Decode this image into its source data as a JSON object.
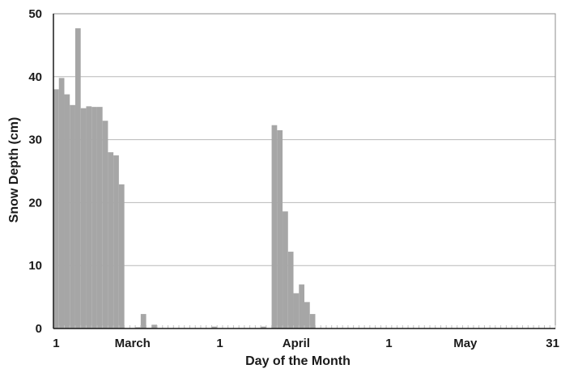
{
  "chart_data": {
    "type": "bar",
    "title": "",
    "xlabel": "Day of the Month",
    "ylabel": "Snow Depth (cm)",
    "ylim": [
      0,
      50
    ],
    "yticks": [
      0,
      10,
      20,
      30,
      40,
      50
    ],
    "x_tick_labels": [
      {
        "day_index": 0,
        "label": "1"
      },
      {
        "day_index": 14,
        "label": "March"
      },
      {
        "day_index": 30,
        "label": "1"
      },
      {
        "day_index": 44,
        "label": "April"
      },
      {
        "day_index": 61,
        "label": "1"
      },
      {
        "day_index": 75,
        "label": "May"
      },
      {
        "day_index": 91,
        "label": "31"
      }
    ],
    "grid": "horizontal",
    "bar_color": "#a6a6a6",
    "gridline_color": "#b8b8b8",
    "values": [
      38.0,
      39.8,
      37.2,
      35.5,
      47.7,
      35.0,
      35.3,
      35.2,
      35.2,
      33.0,
      28.0,
      27.5,
      22.9,
      0,
      0,
      0.2,
      2.3,
      0.1,
      0.6,
      0,
      0,
      0,
      0,
      0,
      0,
      0,
      0,
      0,
      0,
      0.3,
      0,
      0,
      0,
      0,
      0,
      0,
      0,
      0,
      0.3,
      0,
      32.3,
      31.5,
      18.6,
      12.2,
      5.6,
      7.0,
      4.2,
      2.3,
      0,
      0,
      0,
      0,
      0,
      0,
      0,
      0,
      0,
      0,
      0,
      0,
      0,
      0,
      0,
      0,
      0,
      0,
      0,
      0,
      0,
      0,
      0,
      0,
      0,
      0,
      0,
      0,
      0,
      0,
      0,
      0,
      0,
      0,
      0,
      0,
      0,
      0,
      0,
      0,
      0,
      0,
      0,
      0
    ]
  }
}
